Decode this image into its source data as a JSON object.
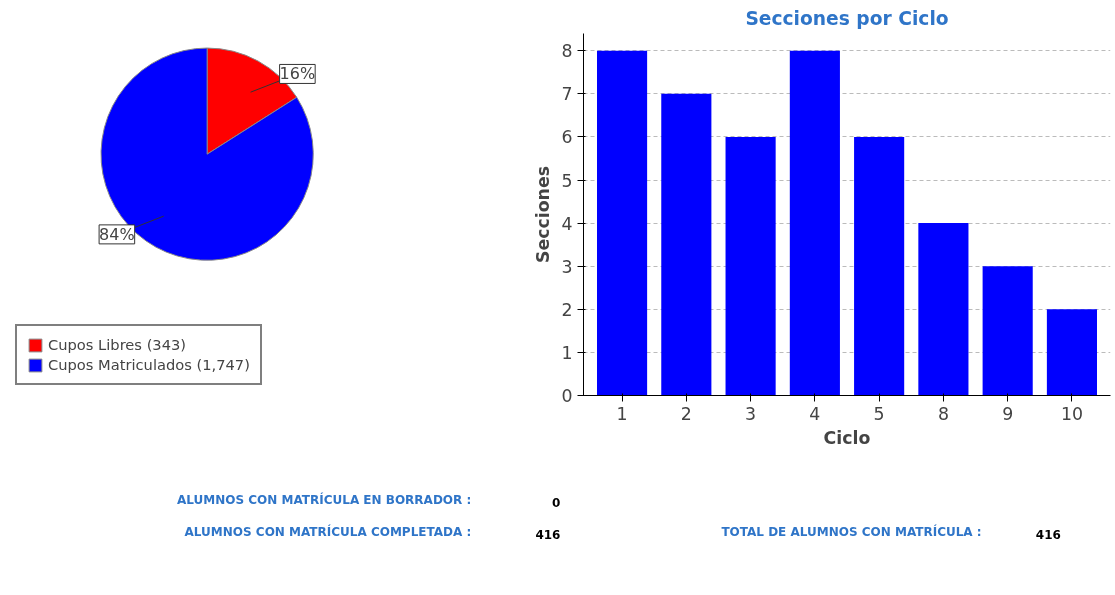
{
  "chart_data": [
    {
      "type": "pie",
      "categories": [
        "Cupos Libres (343)",
        "Cupos Matriculados (1,747)"
      ],
      "values": [
        16,
        84
      ],
      "colors": [
        "#ff0000",
        "#0000ff"
      ],
      "value_labels": [
        "16%",
        "84%"
      ],
      "legend": "bottom left"
    },
    {
      "type": "bar",
      "title": "Secciones por Ciclo",
      "xlabel": "Ciclo",
      "ylabel": "Secciones",
      "categories": [
        "1",
        "2",
        "3",
        "4",
        "5",
        "8",
        "9",
        "10"
      ],
      "values": [
        8,
        7,
        6,
        8,
        6,
        4,
        3,
        2
      ],
      "color": "#0000ff",
      "ylim": [
        0,
        8.4
      ],
      "yticks": [
        0,
        1,
        2,
        3,
        4,
        5,
        6,
        7,
        8
      ],
      "grid": "y"
    },
    {
      "type": "other",
      "annotations": [
        "ALUMNOS CON MATRÍCULA EN BORRADOR :",
        "0",
        "ALUMNOS CON MATRÍCULA COMPLETADA :",
        "416",
        "TOTAL DE ALUMNOS CON MATRÍCULA :",
        "416"
      ]
    }
  ]
}
